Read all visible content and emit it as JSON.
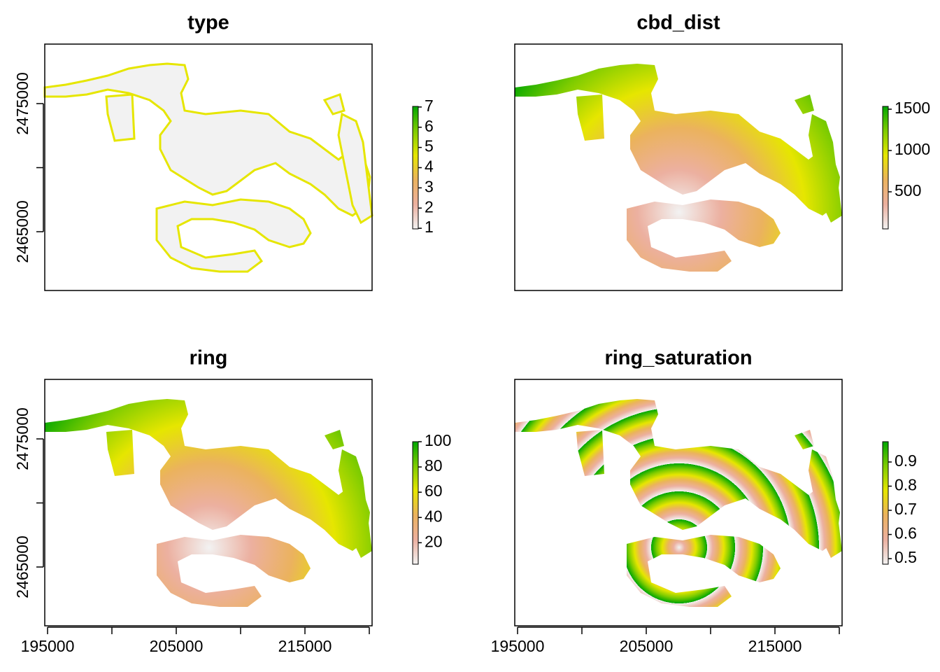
{
  "chart_data": [
    {
      "type": "raster",
      "title": "type",
      "xlim": [
        194783,
        220217
      ],
      "ylim": [
        2460410,
        2479645
      ],
      "yticks": [
        {
          "value": 2465000,
          "label": "2465000"
        },
        {
          "value": 2470000,
          "label": null
        },
        {
          "value": 2475000,
          "label": "2475000"
        }
      ],
      "zlim": [
        0.97,
        7.03
      ],
      "zticks": [
        1,
        2,
        3,
        4,
        5,
        6,
        7
      ],
      "colors": [
        "#f2f2f2",
        "#ecb0a0",
        "#ebb25e",
        "#e6e600",
        "#7fcc00",
        "#00a600"
      ]
    },
    {
      "type": "raster",
      "title": "cbd_dist",
      "xlim": [
        194783,
        220217
      ],
      "ylim": [
        2460410,
        2479645
      ],
      "zlim": [
        51,
        1534
      ],
      "zticks": [
        500,
        1000,
        1500
      ],
      "colors": [
        "#f2f2f2",
        "#ecb0a0",
        "#ebb25e",
        "#e6e600",
        "#7fcc00",
        "#00a600"
      ]
    },
    {
      "type": "raster",
      "title": "ring",
      "xlim": [
        194783,
        220217
      ],
      "ylim": [
        2460410,
        2479645
      ],
      "xticks": [
        {
          "value": 195000,
          "label": "195000"
        },
        {
          "value": 200000,
          "label": null
        },
        {
          "value": 205000,
          "label": "205000"
        },
        {
          "value": 210000,
          "label": null
        },
        {
          "value": 215000,
          "label": "215000"
        },
        {
          "value": 220000,
          "label": null
        }
      ],
      "yticks": [
        {
          "value": 2465000,
          "label": "2465000"
        },
        {
          "value": 2470000,
          "label": null
        },
        {
          "value": 2475000,
          "label": "2475000"
        }
      ],
      "zlim": [
        3,
        100
      ],
      "zticks": [
        20,
        40,
        60,
        80,
        100
      ],
      "colors": [
        "#f2f2f2",
        "#ecb0a0",
        "#ebb25e",
        "#e6e600",
        "#7fcc00",
        "#00a600"
      ]
    },
    {
      "type": "raster",
      "title": "ring_saturation",
      "xlim": [
        194783,
        220217
      ],
      "ylim": [
        2460410,
        2479645
      ],
      "xticks": [
        {
          "value": 195000,
          "label": "195000"
        },
        {
          "value": 200000,
          "label": null
        },
        {
          "value": 205000,
          "label": "205000"
        },
        {
          "value": 210000,
          "label": null
        },
        {
          "value": 215000,
          "label": "215000"
        },
        {
          "value": 220000,
          "label": null
        }
      ],
      "zlim": [
        0.477,
        0.984
      ],
      "zticks": [
        0.5,
        0.6,
        0.7,
        0.8,
        0.9
      ],
      "colors": [
        "#f2f2f2",
        "#ecb0a0",
        "#ebb25e",
        "#e6e600",
        "#7fcc00",
        "#00a600"
      ]
    }
  ]
}
